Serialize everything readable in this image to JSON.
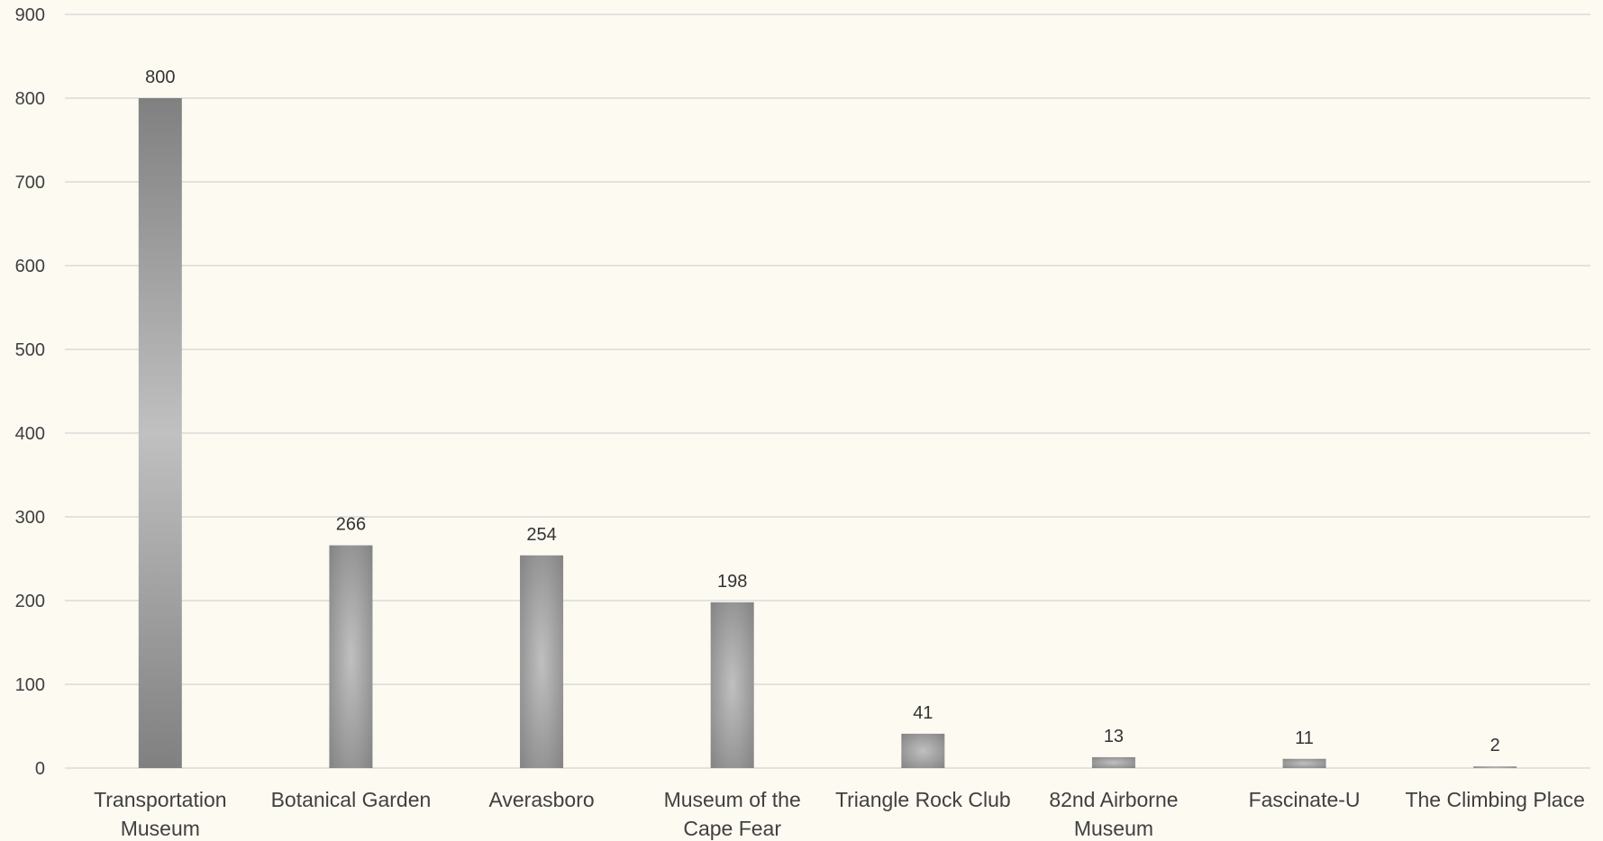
{
  "chart_data": {
    "type": "bar",
    "title": "",
    "xlabel": "",
    "ylabel": "",
    "categories": [
      "Transportation Museum",
      "Botanical Garden",
      "Averasboro",
      "Museum of the Cape Fear",
      "Triangle Rock Club",
      "82nd Airborne Museum",
      "Fascinate-U",
      "The Climbing Place"
    ],
    "category_lines": [
      [
        "Transportation",
        "Museum"
      ],
      [
        "Botanical Garden"
      ],
      [
        "Averasboro"
      ],
      [
        "Museum of the",
        "Cape Fear"
      ],
      [
        "Triangle Rock Club"
      ],
      [
        "82nd Airborne",
        "Museum"
      ],
      [
        "Fascinate-U"
      ],
      [
        "The Climbing Place"
      ]
    ],
    "values": [
      800,
      266,
      254,
      198,
      41,
      13,
      11,
      2
    ],
    "data_labels": [
      "800",
      "266",
      "254",
      "198",
      "41",
      "13",
      "11",
      "2"
    ],
    "ylim": [
      0,
      900
    ],
    "yticks": [
      0,
      100,
      200,
      300,
      400,
      500,
      600,
      700,
      800,
      900
    ],
    "ytick_labels": [
      "0",
      "100",
      "200",
      "300",
      "400",
      "500",
      "600",
      "700",
      "800",
      "900"
    ],
    "grid": true,
    "legend": "none",
    "colors": {
      "background": "#fdfaf2",
      "gridline": "#d9d9d9",
      "bar_dark": "#808080",
      "bar_light": "#bfbfbf"
    }
  }
}
